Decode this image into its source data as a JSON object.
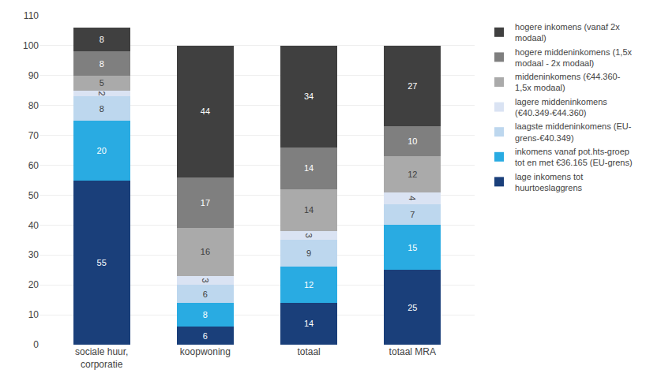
{
  "chart_data": {
    "type": "bar",
    "stacked": true,
    "categories": [
      "sociale huur,\ncorporatie",
      "koopwoning",
      "totaal",
      "totaal MRA"
    ],
    "series": [
      {
        "name": "lage inkomens tot\nhuurtoeslaggrens",
        "color": "#1a3f7a",
        "values": [
          55,
          6,
          14,
          25
        ]
      },
      {
        "name": "inkomens vanaf pot.hts-groep\ntot en met €36.165 (EU-grens)",
        "color": "#29abe2",
        "values": [
          20,
          8,
          12,
          15
        ]
      },
      {
        "name": "laagste middeninkomens (EU-\ngrens-€40.349)",
        "color": "#bdd7ee",
        "values": [
          8,
          6,
          9,
          7
        ]
      },
      {
        "name": "lagere middeninkomens\n(€40.349-€44.360)",
        "color": "#dae3f3",
        "values": [
          2,
          3,
          3,
          4
        ]
      },
      {
        "name": "middeninkomens (€44.360-\n1,5x modaal)",
        "color": "#aaaaaa",
        "values": [
          5,
          16,
          14,
          12
        ]
      },
      {
        "name": "hogere middeninkomens (1,5x\nmodaal - 2x modaal)",
        "color": "#7f7f7f",
        "values": [
          8,
          17,
          14,
          10
        ]
      },
      {
        "name": "hogere inkomens (vanaf 2x\nmodaal)",
        "color": "#404040",
        "values": [
          8,
          44,
          34,
          27
        ]
      }
    ],
    "ylim": [
      0,
      110
    ],
    "yticks": [
      0,
      10,
      20,
      30,
      40,
      50,
      60,
      70,
      80,
      90,
      100,
      110
    ],
    "grid": true,
    "legend": "right",
    "data_labels": true
  }
}
